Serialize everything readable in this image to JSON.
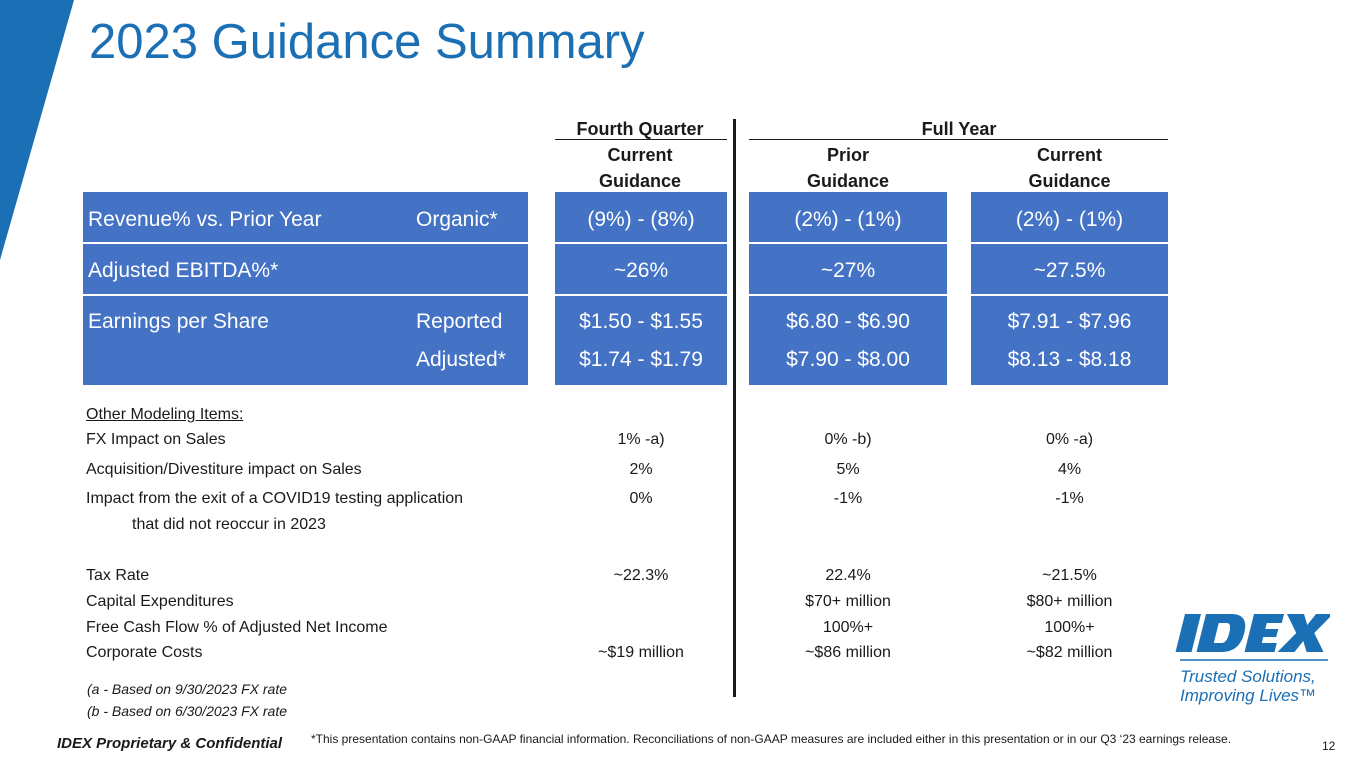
{
  "title": "2023 Guidance Summary",
  "colors": {
    "brand_blue": "#1a6fb5",
    "band_blue": "#4472c4"
  },
  "header": {
    "fourth_quarter": "Fourth Quarter",
    "full_year": "Full Year",
    "q4_col": [
      "Current",
      "Guidance"
    ],
    "prior_col": [
      "Prior",
      "Guidance"
    ],
    "current_col": [
      "Current",
      "Guidance"
    ]
  },
  "rows": {
    "revenue": {
      "label": "Revenue% vs. Prior Year",
      "sub": "Organic*",
      "q4": "(9%) - (8%)",
      "prior": "(2%) - (1%)",
      "current": "(2%) - (1%)"
    },
    "ebitda": {
      "label": "Adjusted EBITDA%*",
      "q4": "~26%",
      "prior": "~27%",
      "current": "~27.5%"
    },
    "eps_reported": {
      "label": "Earnings per Share",
      "sub": "Reported",
      "q4": "$1.50 - $1.55",
      "prior": "$6.80 - $6.90",
      "current": "$7.91 - $7.96"
    },
    "eps_adjusted": {
      "sub": "Adjusted*",
      "q4": "$1.74 - $1.79",
      "prior": "$7.90 - $8.00",
      "current": "$8.13 - $8.18"
    }
  },
  "other": {
    "heading": "Other Modeling Items:",
    "fx": {
      "label": "FX Impact on Sales",
      "q4": "1% -a)",
      "prior": "0% -b)",
      "current": "0% -a)"
    },
    "acq": {
      "label": "Acquisition/Divestiture impact on Sales",
      "q4": "2%",
      "prior": "5%",
      "current": "4%"
    },
    "covid": {
      "label": "Impact from the exit of a COVID19 testing application",
      "label2": "that did not reoccur in 2023",
      "q4": "0%",
      "prior": "-1%",
      "current": "-1%"
    },
    "tax": {
      "label": "Tax Rate",
      "q4": "~22.3%",
      "prior": "22.4%",
      "current": "~21.5%"
    },
    "capex": {
      "label": "Capital Expenditures",
      "prior": "$70+ million",
      "current": "$80+ million"
    },
    "fcf": {
      "label": "Free Cash Flow % of Adjusted Net Income",
      "prior": "100%+",
      "current": "100%+"
    },
    "corp": {
      "label": "Corporate Costs",
      "q4": "~$19 million",
      "prior": "~$86 million",
      "current": "~$82 million"
    }
  },
  "footnotes": {
    "a": "(a - Based on 9/30/2023 FX rate",
    "b": "(b - Based on 6/30/2023 FX rate"
  },
  "footer": {
    "confidential": "IDEX Proprietary & Confidential",
    "disclaimer": "*This presentation contains non-GAAP financial information. Reconciliations of non-GAAP measures are included either in this presentation or in our Q3 ‘23 earnings release.",
    "page": "12"
  },
  "logo": {
    "wordmark": "IDEX",
    "tagline1": "Trusted Solutions,",
    "tagline2": "Improving Lives™"
  }
}
